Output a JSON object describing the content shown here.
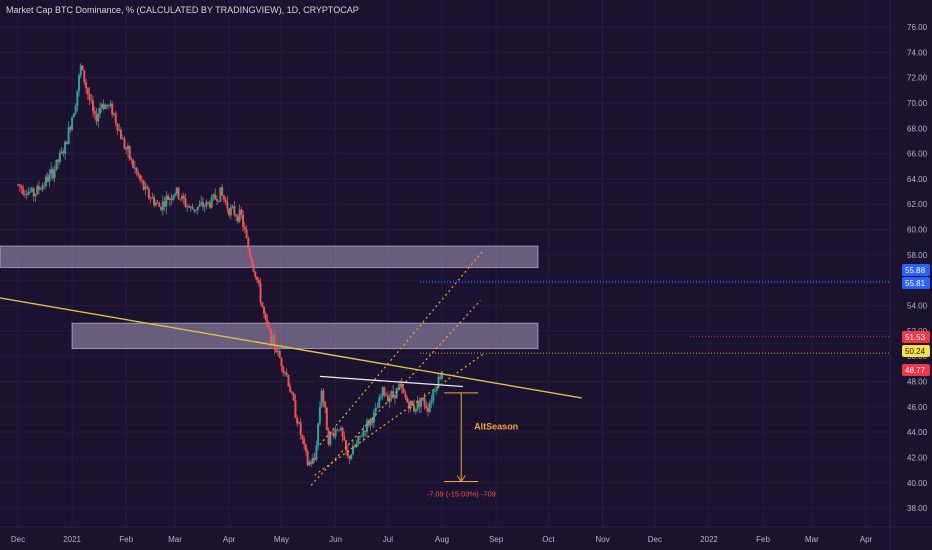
{
  "header": {
    "title": "Market Cap BTC Dominance, % (CALCULATED BY TRADINGVIEW), 1D, CRYPTOCAP"
  },
  "colors": {
    "background": "#1b1230",
    "up": "#26a69a",
    "down": "#ef5350",
    "trend_line": "#d9c14a",
    "channel": "#f2a531",
    "zone": "#b6a8c8",
    "level_blue": "#2962ff",
    "level_red": "#f23645",
    "level_yellow": "#f7e04b",
    "annotation": "#f2a531"
  },
  "chart_data": {
    "type": "candlestick",
    "title": "Market Cap BTC Dominance, % (CALCULATED BY TRADINGVIEW), 1D, CRYPTOCAP",
    "xlabel": "",
    "ylabel": "",
    "x_ticks": [
      "Dec",
      "2021",
      "Feb",
      "Mar",
      "Apr",
      "May",
      "Jun",
      "Jul",
      "Aug",
      "Sep",
      "Oct",
      "Nov",
      "Dec",
      "2022",
      "Feb",
      "Mar",
      "Apr"
    ],
    "x_tick_dates": [
      "2020-12-01",
      "2021-01-01",
      "2021-02-01",
      "2021-03-01",
      "2021-04-01",
      "2021-05-01",
      "2021-06-01",
      "2021-07-01",
      "2021-08-01",
      "2021-09-01",
      "2021-10-01",
      "2021-11-01",
      "2021-12-01",
      "2022-01-01",
      "2022-02-01",
      "2022-03-01",
      "2022-04-01"
    ],
    "y_ticks": [
      "76.00",
      "74.00",
      "72.00",
      "70.00",
      "68.00",
      "66.00",
      "64.00",
      "62.00",
      "60.00",
      "58.00",
      "56.00",
      "54.00",
      "52.00",
      "50.00",
      "48.00",
      "46.00",
      "44.00",
      "42.00",
      "40.00",
      "38.00"
    ],
    "ylim": [
      36.9,
      77.5
    ],
    "price_path": [
      [
        "2020-12-01",
        63.5
      ],
      [
        "2020-12-10",
        62.8
      ],
      [
        "2020-12-20",
        64.3
      ],
      [
        "2020-12-28",
        66.5
      ],
      [
        "2021-01-03",
        70.2
      ],
      [
        "2021-01-06",
        72.8
      ],
      [
        "2021-01-10",
        70.8
      ],
      [
        "2021-01-14",
        68.6
      ],
      [
        "2021-01-18",
        70.0
      ],
      [
        "2021-01-24",
        69.5
      ],
      [
        "2021-01-30",
        67.0
      ],
      [
        "2021-02-05",
        65.0
      ],
      [
        "2021-02-12",
        63.0
      ],
      [
        "2021-02-20",
        61.8
      ],
      [
        "2021-03-01",
        63.0
      ],
      [
        "2021-03-10",
        61.6
      ],
      [
        "2021-03-20",
        62.0
      ],
      [
        "2021-03-27",
        62.9
      ],
      [
        "2021-04-01",
        61.6
      ],
      [
        "2021-04-08",
        61.0
      ],
      [
        "2021-04-12",
        58.5
      ],
      [
        "2021-04-17",
        56.0
      ],
      [
        "2021-04-22",
        52.5
      ],
      [
        "2021-04-28",
        50.5
      ],
      [
        "2021-05-04",
        48.5
      ],
      [
        "2021-05-10",
        45.0
      ],
      [
        "2021-05-16",
        41.5
      ],
      [
        "2021-05-20",
        41.8
      ],
      [
        "2021-05-24",
        47.5
      ],
      [
        "2021-05-28",
        43.5
      ],
      [
        "2021-06-03",
        44.5
      ],
      [
        "2021-06-08",
        41.9
      ],
      [
        "2021-06-13",
        43.0
      ],
      [
        "2021-06-18",
        44.4
      ],
      [
        "2021-06-24",
        45.5
      ],
      [
        "2021-06-28",
        47.2
      ],
      [
        "2021-07-02",
        46.8
      ],
      [
        "2021-07-08",
        47.5
      ],
      [
        "2021-07-12",
        46.4
      ],
      [
        "2021-07-16",
        45.9
      ],
      [
        "2021-07-20",
        46.6
      ],
      [
        "2021-07-24",
        46.0
      ],
      [
        "2021-07-28",
        47.6
      ],
      [
        "2021-08-01",
        48.77
      ]
    ],
    "price_lines": [
      {
        "label": "55.88",
        "value": 55.88,
        "color": "#2962ff"
      },
      {
        "label": "55.81",
        "value": 55.81,
        "color": "#2962ff"
      },
      {
        "label": "51.53",
        "value": 51.53,
        "color": "#f23645"
      },
      {
        "label": "50.24",
        "value": 50.24,
        "color": "#f7e04b"
      },
      {
        "label": "48.77",
        "value": 48.77,
        "color": "#f23645"
      }
    ],
    "zones": [
      {
        "from_date": "2020-12-01",
        "to_date": "2021-09-25",
        "y_low": 57.0,
        "y_high": 58.7
      },
      {
        "from_date": "2021-01-01",
        "to_date": "2021-09-25",
        "y_low": 50.6,
        "y_high": 52.6
      }
    ],
    "trendlines": [
      {
        "kind": "descending",
        "from": [
          "2020-12-01",
          54.4
        ],
        "to": [
          "2021-10-20",
          46.7
        ]
      },
      {
        "kind": "resistance",
        "from": [
          "2021-05-23",
          48.4
        ],
        "to": [
          "2021-08-13",
          47.6
        ]
      }
    ],
    "channel": {
      "lines": [
        {
          "from": [
            "2021-05-23",
            43.0
          ],
          "to": [
            "2021-08-25",
            58.4
          ]
        },
        {
          "from": [
            "2021-05-18",
            39.8
          ],
          "to": [
            "2021-08-23",
            54.4
          ]
        },
        {
          "from": [
            "2021-05-20",
            40.6
          ],
          "to": [
            "2021-08-25",
            50.2
          ]
        }
      ]
    },
    "measure": {
      "date": "2021-08-12",
      "from_value": 47.1,
      "to_value": 40.1,
      "label": "-7.09 (-15.03%) -709"
    },
    "annotations": [
      {
        "text": "AltSeason",
        "date": "2021-08-16",
        "value": 44.2
      }
    ]
  }
}
